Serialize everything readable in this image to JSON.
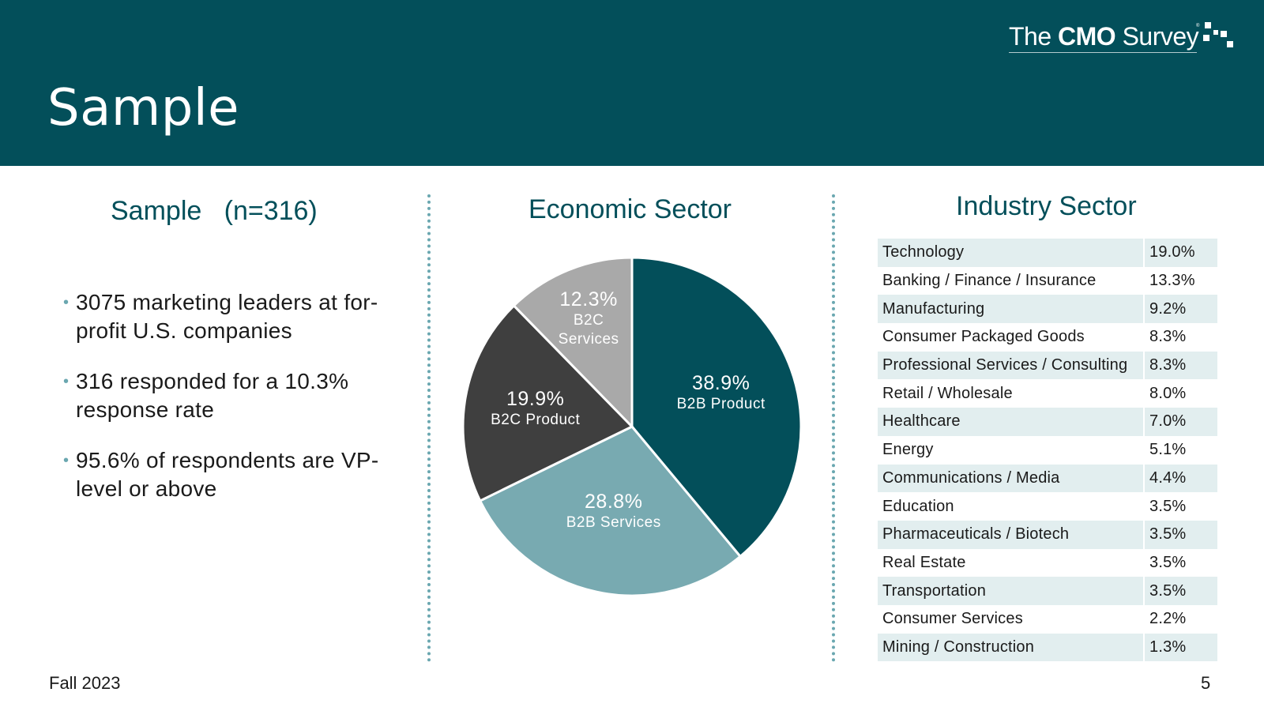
{
  "header": {
    "title": "Sample",
    "logo": {
      "prefix": "The ",
      "bold": "CMO",
      "suffix": " Survey",
      "registered": "®"
    }
  },
  "left": {
    "title": "Sample   (n=316)",
    "bullet_char": "•",
    "bullets": [
      "3075 marketing leaders at for-profit U.S. companies",
      "316 responded for a 10.3% response rate",
      "95.6% of respondents are VP-level or above"
    ]
  },
  "middle": {
    "title": "Economic Sector"
  },
  "right": {
    "title": "Industry Sector"
  },
  "chart_data": [
    {
      "type": "pie",
      "title": "Economic Sector",
      "categories": [
        "B2B Product",
        "B2B Services",
        "B2C Product",
        "B2C Services"
      ],
      "values": [
        38.9,
        28.8,
        19.9,
        12.3
      ],
      "value_labels": [
        "38.9%",
        "28.8%",
        "19.9%",
        "12.3%"
      ],
      "colors": [
        "#034f5a",
        "#78aab1",
        "#3f3f3f",
        "#a9a9a9"
      ],
      "start_angle_deg": 0,
      "direction": "clockwise"
    },
    {
      "type": "table",
      "title": "Industry Sector",
      "rows": [
        {
          "label": "Technology",
          "value": "19.0%"
        },
        {
          "label": "Banking / Finance / Insurance",
          "value": "13.3%"
        },
        {
          "label": "Manufacturing",
          "value": "9.2%"
        },
        {
          "label": "Consumer Packaged Goods",
          "value": "8.3%"
        },
        {
          "label": "Professional Services / Consulting",
          "value": "8.3%"
        },
        {
          "label": "Retail / Wholesale",
          "value": "8.0%"
        },
        {
          "label": "Healthcare",
          "value": "7.0%"
        },
        {
          "label": "Energy",
          "value": "5.1%"
        },
        {
          "label": "Communications / Media",
          "value": "4.4%"
        },
        {
          "label": "Education",
          "value": "3.5%"
        },
        {
          "label": "Pharmaceuticals / Biotech",
          "value": "3.5%"
        },
        {
          "label": "Real Estate",
          "value": "3.5%"
        },
        {
          "label": "Transportation",
          "value": "3.5%"
        },
        {
          "label": "Consumer Services",
          "value": "2.2%"
        },
        {
          "label": "Mining / Construction",
          "value": "1.3%"
        }
      ]
    }
  ],
  "footer": {
    "left": "Fall 2023",
    "page_number": "5"
  }
}
